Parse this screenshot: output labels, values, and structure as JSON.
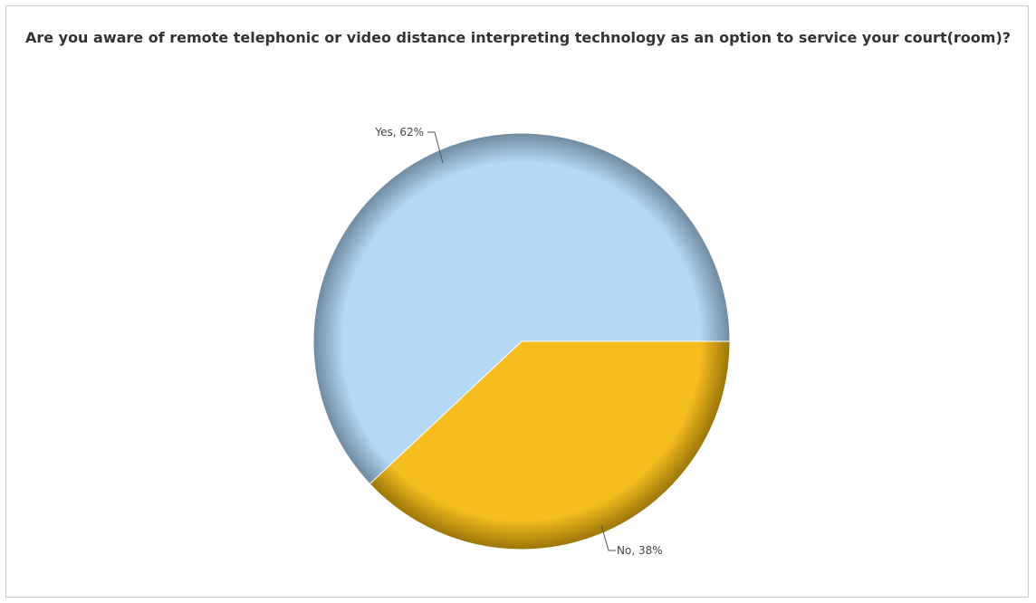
{
  "chart_data": {
    "type": "pie",
    "title": "Are you aware of remote telephonic or video distance interpreting technology as an option to service your court(room)?",
    "slices": [
      {
        "label": "Yes",
        "value": 62,
        "color": "#b3d9f7",
        "edge_color": "#6f8aa0"
      },
      {
        "label": "No",
        "value": 38,
        "color": "#f5bd1f",
        "edge_color": "#9a7508"
      }
    ],
    "data_labels": [
      "Yes, 62%",
      "No, 38%"
    ],
    "legend": "none"
  }
}
